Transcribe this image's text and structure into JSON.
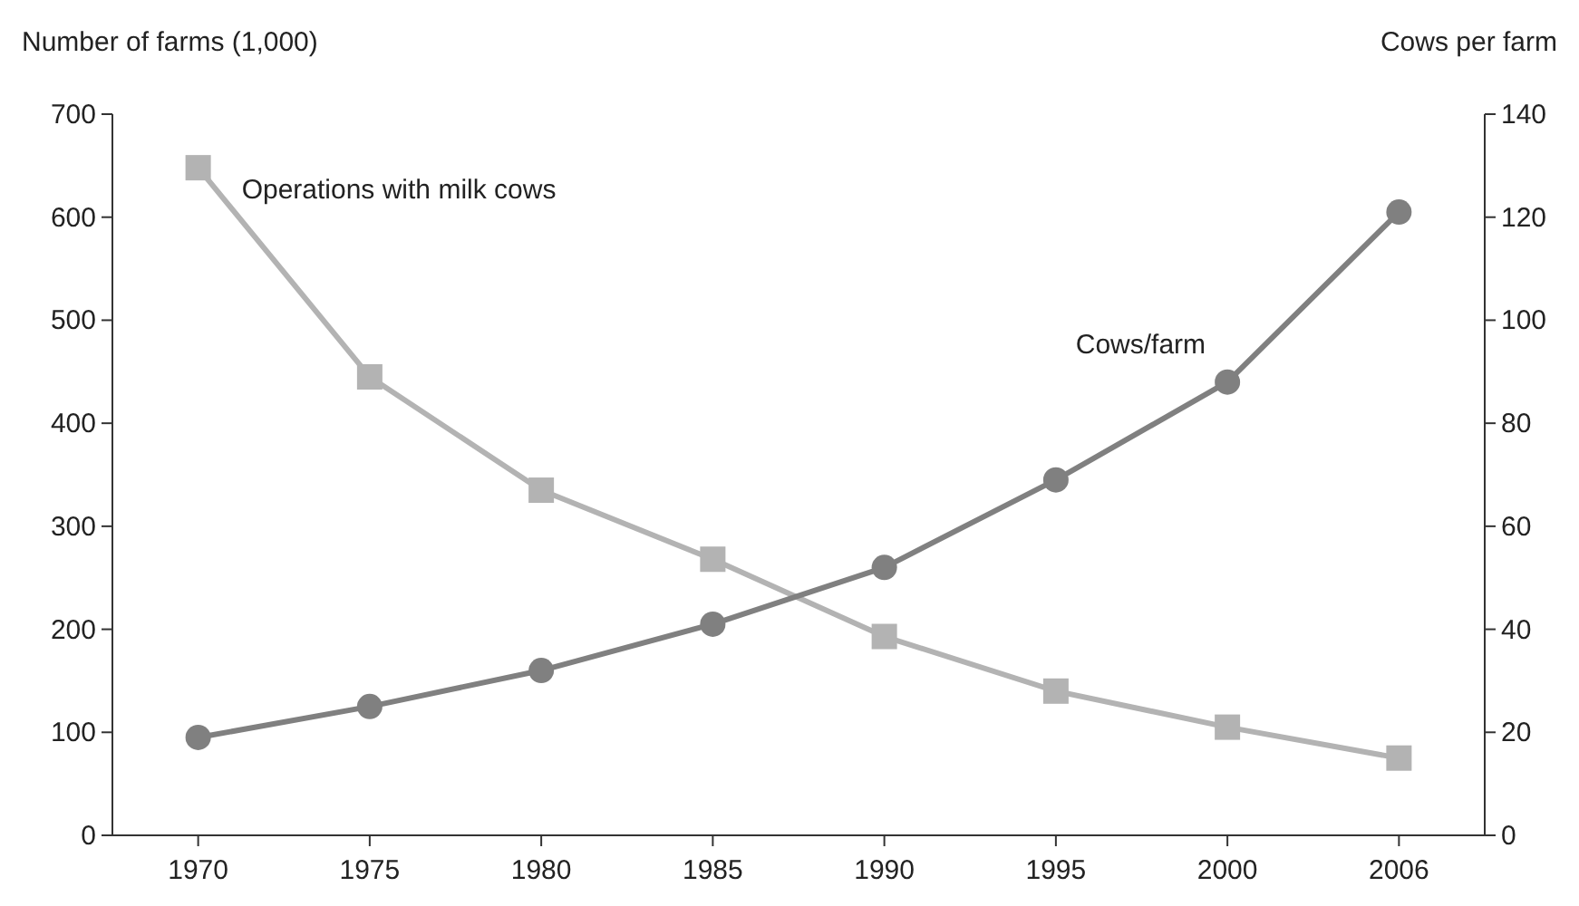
{
  "chart_data": {
    "type": "line",
    "ylabel": "Number of farms (1,000)",
    "y2label": "Cows per farm",
    "categories": [
      "1970",
      "1975",
      "1980",
      "1985",
      "1990",
      "1995",
      "2000",
      "2006"
    ],
    "series": [
      {
        "name": "Operations with milk cows",
        "color": "#b3b3b3",
        "marker": "square",
        "values": [
          648,
          445,
          335,
          268,
          193,
          140,
          105,
          75
        ]
      },
      {
        "name": "Cows/farm",
        "color": "#808080",
        "marker": "circle",
        "axis": "y2",
        "values": [
          19,
          25,
          32,
          41,
          52,
          69,
          88,
          121
        ]
      }
    ],
    "ylim": [
      0,
      700
    ],
    "yticks": [
      0,
      100,
      200,
      300,
      400,
      500,
      600,
      700
    ],
    "y2lim": [
      0,
      140
    ],
    "y2ticks": [
      0,
      20,
      40,
      60,
      80,
      100,
      120,
      140
    ],
    "grid": false
  }
}
